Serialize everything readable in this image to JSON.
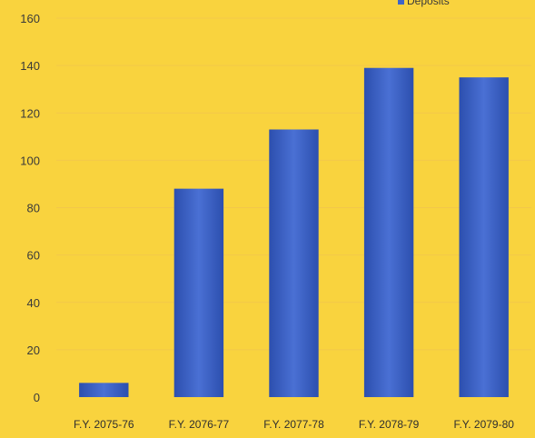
{
  "colors": {
    "background": "#f9d33e",
    "bar": "#3f64c8",
    "bar_dark": "#2c4fae"
  },
  "chart_data": {
    "type": "bar",
    "categories": [
      "F.Y. 2075-76",
      "F.Y. 2076-77",
      "F.Y. 2077-78",
      "F.Y. 2078-79",
      "F.Y. 2079-80"
    ],
    "series": [
      {
        "name": "Deposits",
        "values": [
          6,
          88,
          113,
          139,
          135
        ]
      }
    ],
    "ylim": [
      0,
      160
    ],
    "yticks": [
      0,
      20,
      40,
      60,
      80,
      100,
      120,
      140,
      160
    ],
    "grid": true,
    "legend_position": "top-right"
  }
}
